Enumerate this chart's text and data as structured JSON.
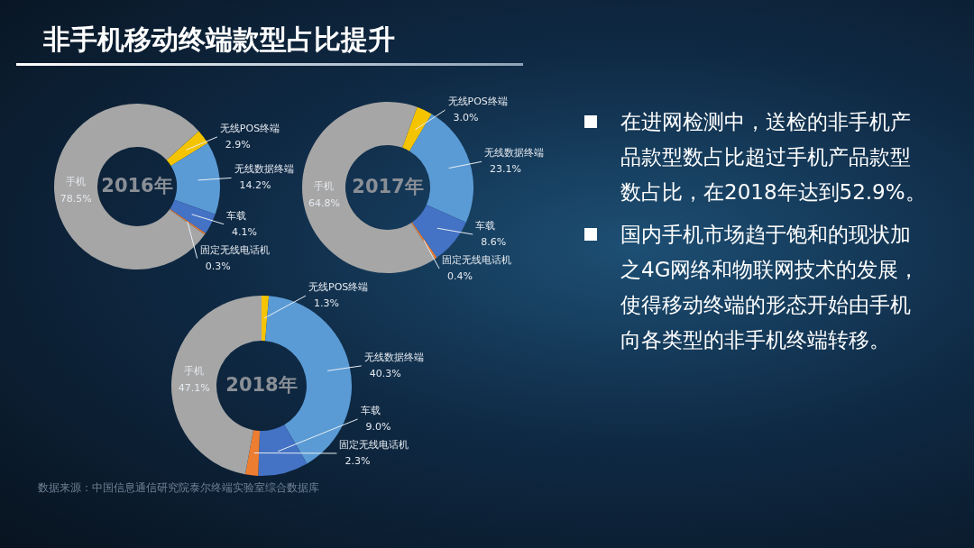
{
  "chart_data": [
    {
      "type": "donut",
      "title": "非手机移动终端款型占比提升",
      "categories": [
        "无线POS终端",
        "无线数据终端",
        "车载",
        "固定无线电话机",
        "手机"
      ],
      "values": [
        2.9,
        14.2,
        4.1,
        0.3,
        78.5
      ],
      "value_labels": [
        "2.9%",
        "14.2%",
        "4.1%",
        "0.3%",
        "78.5%"
      ],
      "colors": [
        "#f5c400",
        "#5b9bd5",
        "#4472c4",
        "#ed7d31",
        "#a6a6a6"
      ],
      "annotations": [
        "2016年"
      ]
    },
    {
      "type": "donut",
      "categories": [
        "无线POS终端",
        "无线数据终端",
        "车载",
        "固定无线电话机",
        "手机"
      ],
      "values": [
        3.0,
        23.1,
        8.6,
        0.4,
        64.8
      ],
      "value_labels": [
        "3.0%",
        "23.1%",
        "8.6%",
        "0.4%",
        "64.8%"
      ],
      "colors": [
        "#f5c400",
        "#5b9bd5",
        "#4472c4",
        "#ed7d31",
        "#a6a6a6"
      ],
      "annotations": [
        "2017年"
      ]
    },
    {
      "type": "donut",
      "categories": [
        "无线POS终端",
        "无线数据终端",
        "车载",
        "固定无线电话机",
        "手机"
      ],
      "values": [
        1.3,
        40.3,
        9.0,
        2.3,
        47.1
      ],
      "value_labels": [
        "1.3%",
        "40.3%",
        "9.0%",
        "2.3%",
        "47.1%"
      ],
      "colors": [
        "#f5c400",
        "#5b9bd5",
        "#4472c4",
        "#ed7d31",
        "#a6a6a6"
      ],
      "annotations": [
        "2018年",
        "数据来源：中国信息通信研究院泰尔终端实验室综合数据库"
      ]
    },
    {
      "type": "other",
      "annotations": [
        "在进网检测中，送检的非手机产品款型数占比超过手机产品款型数占比，在2018年达到52.9%。",
        "国内手机市场趋于饱和的现状加之4G网络和物联网技术的发展，使得移动终端的形态开始由手机向各类型的非手机终端转移。"
      ]
    }
  ]
}
